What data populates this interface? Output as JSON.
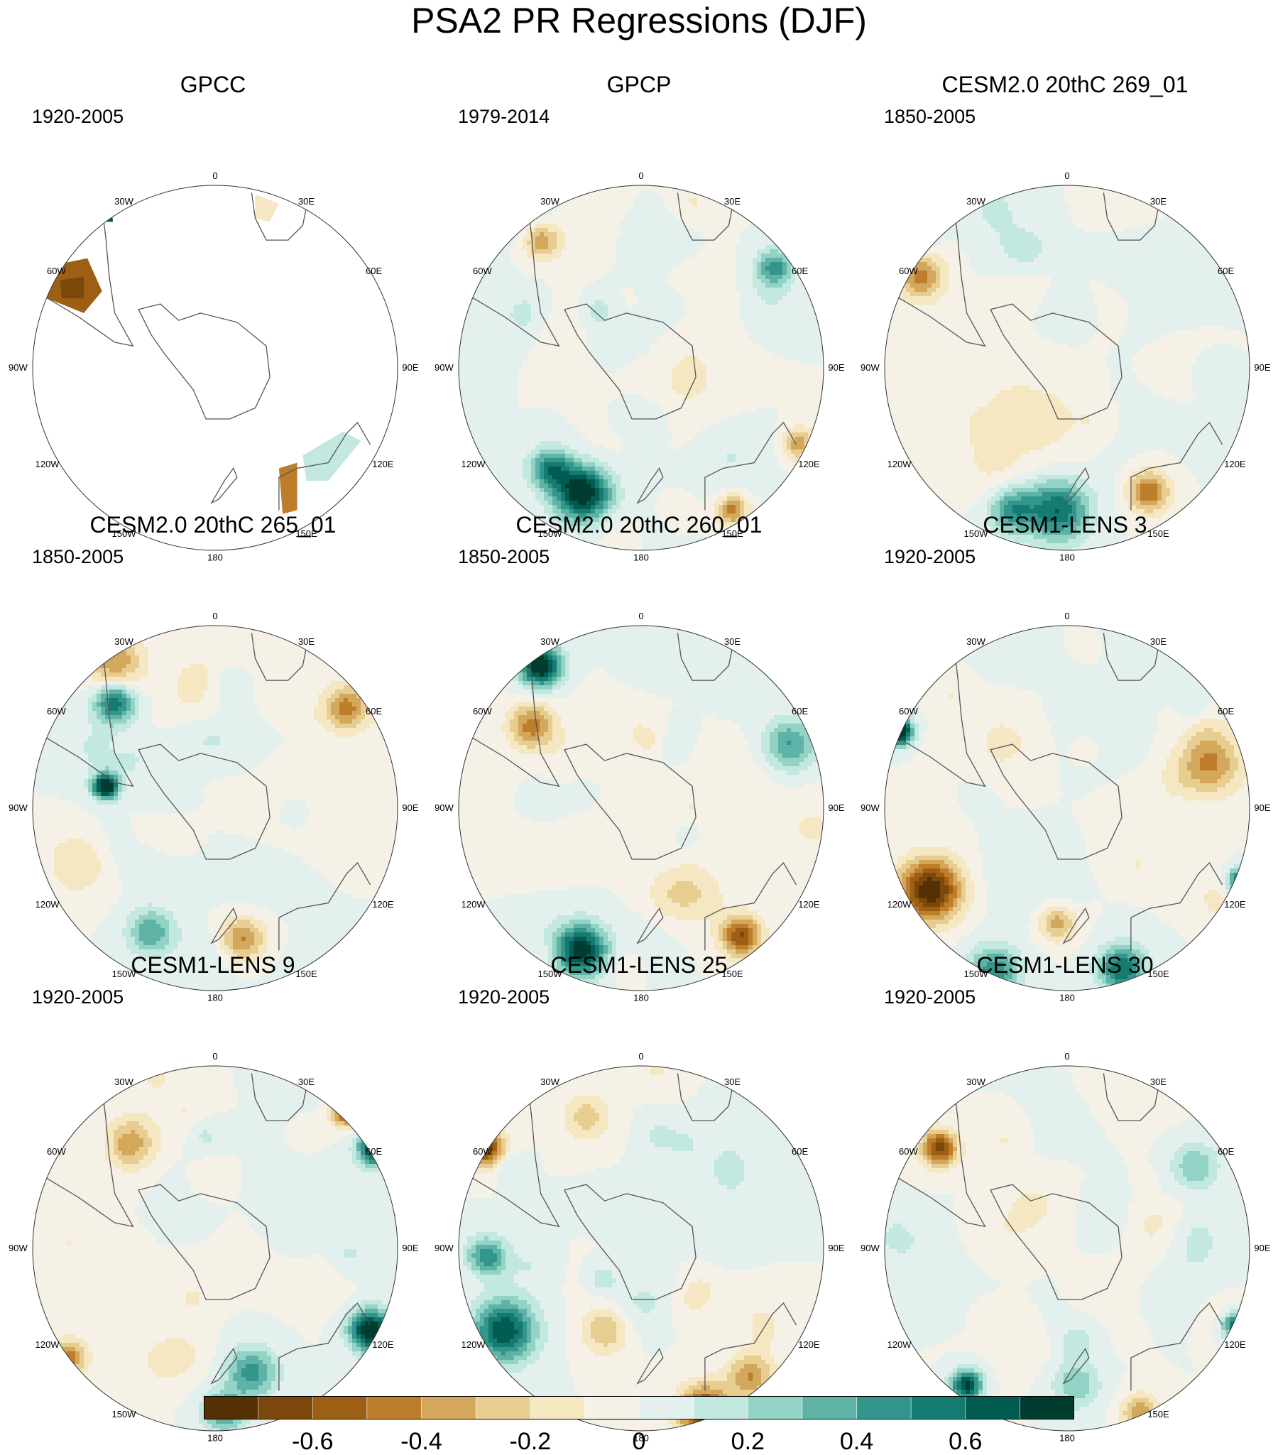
{
  "title": "PSA2 PR Regressions (DJF)",
  "panels": [
    {
      "title": "GPCC",
      "years": "1920-2005"
    },
    {
      "title": "GPCP",
      "years": "1979-2014"
    },
    {
      "title": "CESM2.0 20thC 269_01",
      "years": "1850-2005"
    },
    {
      "title": "CESM2.0 20thC 265_01",
      "years": "1850-2005"
    },
    {
      "title": "CESM2.0 20thC 260_01",
      "years": "1850-2005"
    },
    {
      "title": "CESM1-LENS 3",
      "years": "1920-2005"
    },
    {
      "title": "CESM1-LENS 9",
      "years": "1920-2005"
    },
    {
      "title": "CESM1-LENS 25",
      "years": "1920-2005"
    },
    {
      "title": "CESM1-LENS 30",
      "years": "1920-2005"
    }
  ],
  "longitude_labels": [
    "0",
    "30E",
    "60E",
    "90E",
    "120E",
    "150E",
    "180",
    "150W",
    "120W",
    "90W",
    "60W",
    "30W"
  ],
  "colorbar": {
    "colors": [
      "#543005",
      "#7b470b",
      "#9d5f14",
      "#bd7d2b",
      "#d3a75c",
      "#e8cd91",
      "#f5e7c2",
      "#f5f1e6",
      "#e4f0ee",
      "#c2e8e0",
      "#92d3c6",
      "#5fb2a6",
      "#33968c",
      "#157a6f",
      "#025c51",
      "#003c30"
    ],
    "tick_labels": [
      "-0.6",
      "-0.4",
      "-0.2",
      "0",
      "0.2",
      "0.4",
      "0.6"
    ]
  }
}
